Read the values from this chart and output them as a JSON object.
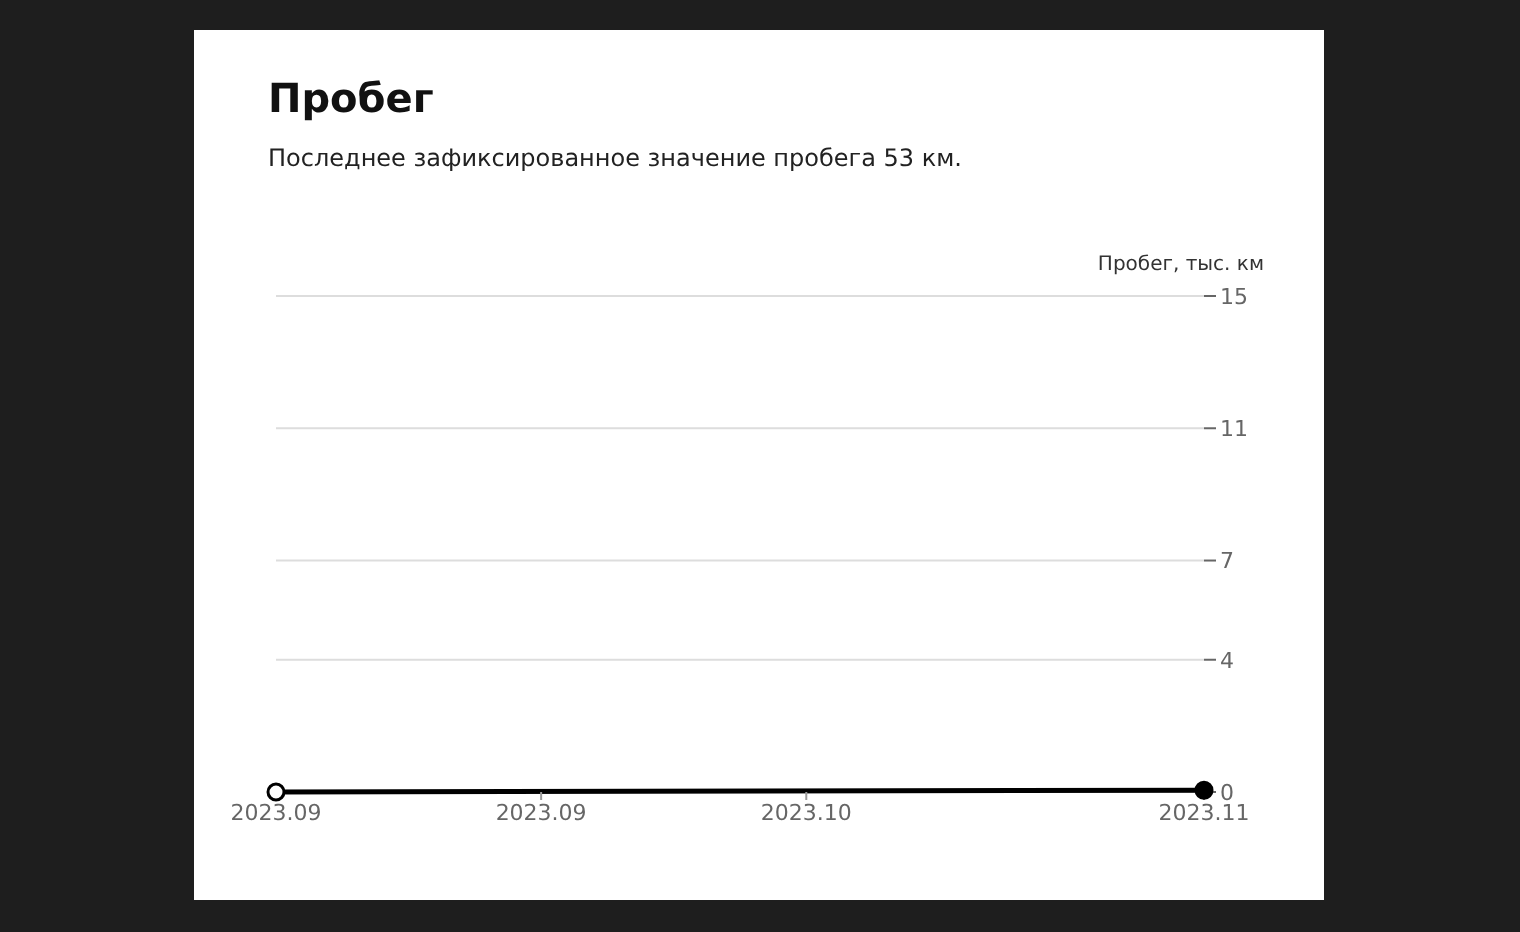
{
  "chart_data": {
    "type": "line",
    "title": "Пробег",
    "subtitle": "Последнее зафиксированное значение пробега 53 км.",
    "ylabel": "Пробег, тыс. км",
    "x": [
      "2023-09-01",
      "2023-11-10"
    ],
    "series": [
      {
        "color": "#000000",
        "values": [
          0,
          0.053
        ]
      }
    ],
    "xlim": [
      "2023-09-01",
      "2023-11-10"
    ],
    "xticks": [
      {
        "value": "2023-09-01",
        "label": "2023.09"
      },
      {
        "value": "2023-09-21",
        "label": "2023.09"
      },
      {
        "value": "2023-10-11",
        "label": "2023.10"
      },
      {
        "value": "2023-11-10",
        "label": "2023.11"
      }
    ],
    "ylim": [
      0,
      15
    ],
    "yticks": [
      0,
      4,
      7,
      11,
      15
    ],
    "grid": "y",
    "marker": "circle",
    "line_style": "solid"
  }
}
